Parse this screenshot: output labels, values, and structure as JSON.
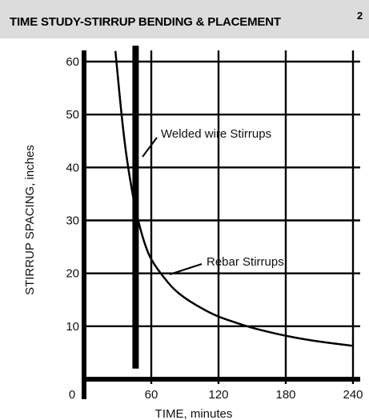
{
  "chart_data": {
    "type": "line",
    "title": "TIME STUDY-STIRRUP BENDING & PLACEMENT",
    "title_superscript": "2",
    "xlabel": "TIME, minutes",
    "ylabel": "STIRRUP SPACING, inches",
    "xlim": [
      0,
      240
    ],
    "ylim": [
      0,
      63
    ],
    "x_ticks": [
      "0",
      "60",
      "120",
      "180",
      "240"
    ],
    "y_ticks": [
      "10",
      "20",
      "30",
      "40",
      "50",
      "60"
    ],
    "x_tick_values": [
      0,
      60,
      120,
      180,
      240
    ],
    "y_tick_values": [
      10,
      20,
      30,
      40,
      50,
      60
    ],
    "grid": true,
    "series": [
      {
        "name": "Rebar Stirrups",
        "x": [
          28,
          32,
          36,
          40,
          45,
          50,
          55,
          60,
          70,
          80,
          90,
          100,
          110,
          120,
          135,
          150,
          165,
          180,
          195,
          210,
          225,
          240
        ],
        "y": [
          62,
          53,
          45,
          39,
          33,
          28.5,
          25,
          22.5,
          19.5,
          17,
          15.3,
          14,
          12.8,
          11.8,
          10.7,
          9.7,
          8.9,
          8.2,
          7.6,
          7.1,
          6.7,
          6.3
        ]
      },
      {
        "name": "Welded wire Stirrups",
        "x": [
          46,
          46
        ],
        "y": [
          2,
          63
        ]
      }
    ],
    "annotations": [
      {
        "text": "Welded wire Stirrups",
        "series": "Welded wire Stirrups",
        "x": 80,
        "y": 47
      },
      {
        "text": "Rebar Stirrups",
        "series": "Rebar Stirrups",
        "x": 100,
        "y": 22.5
      }
    ],
    "colors": {
      "line": "#000000",
      "grid": "#000000",
      "title_band": "#dcdcdc"
    }
  }
}
